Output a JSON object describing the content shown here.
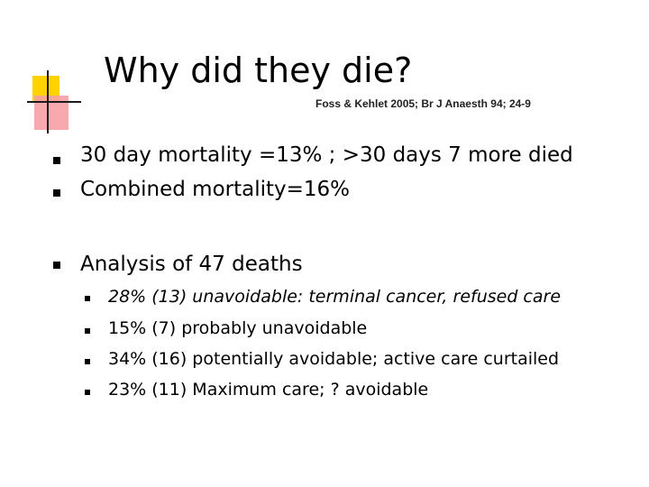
{
  "slide": {
    "title": "Why did they die?",
    "citation": "Foss & Kehlet 2005; Br J Anaesth 94; 24-9"
  },
  "bullets": [
    {
      "text": "30 day mortality =13% ; >30 days 7 more died"
    },
    {
      "text": "Combined mortality=16%"
    },
    {
      "text": "Analysis of 47 deaths"
    }
  ],
  "sub_bullets": [
    {
      "text": "28% (13) unavoidable: terminal cancer, refused care"
    },
    {
      "text": "15% (7) probably unavoidable"
    },
    {
      "text": "34% (16) potentially avoidable; active care curtailed"
    },
    {
      "text": "23% (11) Maximum care; ? avoidable"
    }
  ]
}
